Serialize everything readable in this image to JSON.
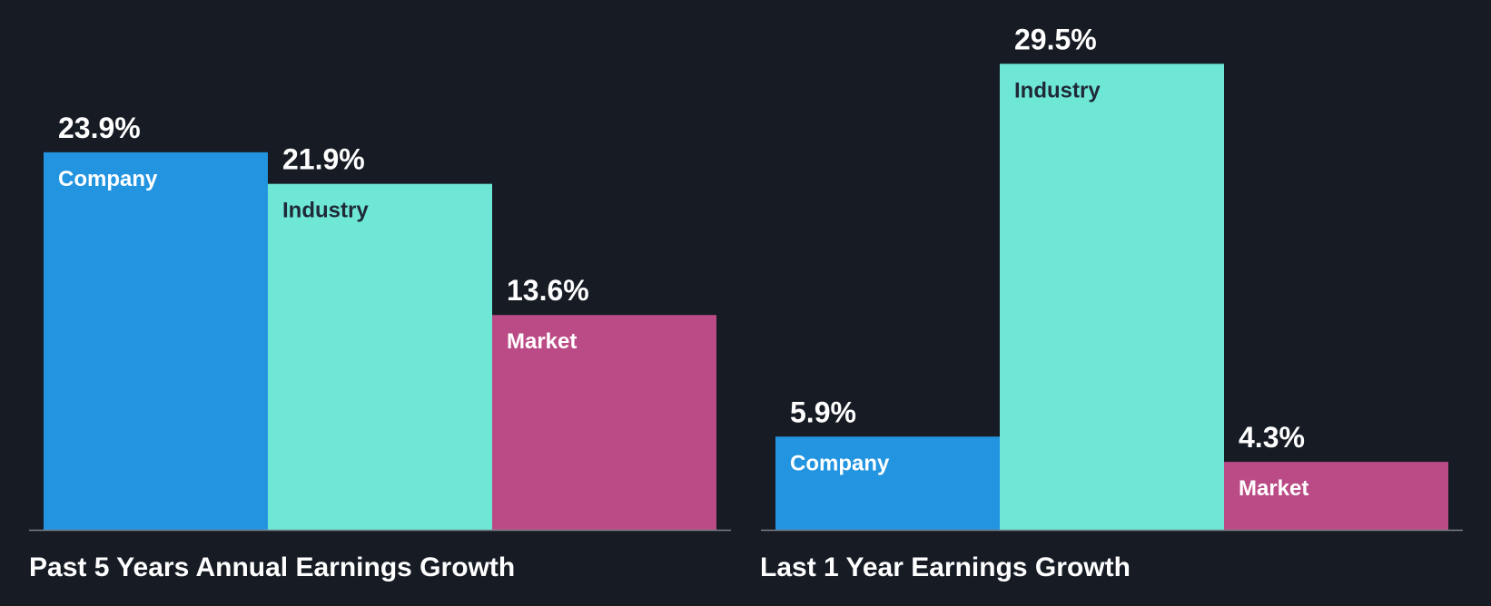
{
  "background": "#161b24",
  "baseline_color": "#7a7f87",
  "chart_data": [
    {
      "type": "bar",
      "title": "Past 5 Years Annual Earnings Growth",
      "categories": [
        "Company",
        "Industry",
        "Market"
      ],
      "values": [
        23.9,
        21.9,
        13.6
      ],
      "value_labels": [
        "23.9%",
        "21.9%",
        "13.6%"
      ],
      "colors": [
        "#2394e0",
        "#6ee7d6",
        "#bb4b86"
      ],
      "label_colors": [
        "#ffffff",
        "#1f2937",
        "#ffffff"
      ],
      "unit": "%",
      "ylim": [
        0,
        31.3
      ],
      "grid": false,
      "xlabel": "",
      "ylabel": ""
    },
    {
      "type": "bar",
      "title": "Last 1 Year Earnings Growth",
      "categories": [
        "Company",
        "Industry",
        "Market"
      ],
      "values": [
        5.9,
        29.5,
        4.3
      ],
      "value_labels": [
        "5.9%",
        "29.5%",
        "4.3%"
      ],
      "colors": [
        "#2394e0",
        "#6ee7d6",
        "#bb4b86"
      ],
      "label_colors": [
        "#ffffff",
        "#1f2937",
        "#ffffff"
      ],
      "unit": "%",
      "ylim": [
        0,
        31.3
      ],
      "grid": false,
      "xlabel": "",
      "ylabel": ""
    }
  ]
}
